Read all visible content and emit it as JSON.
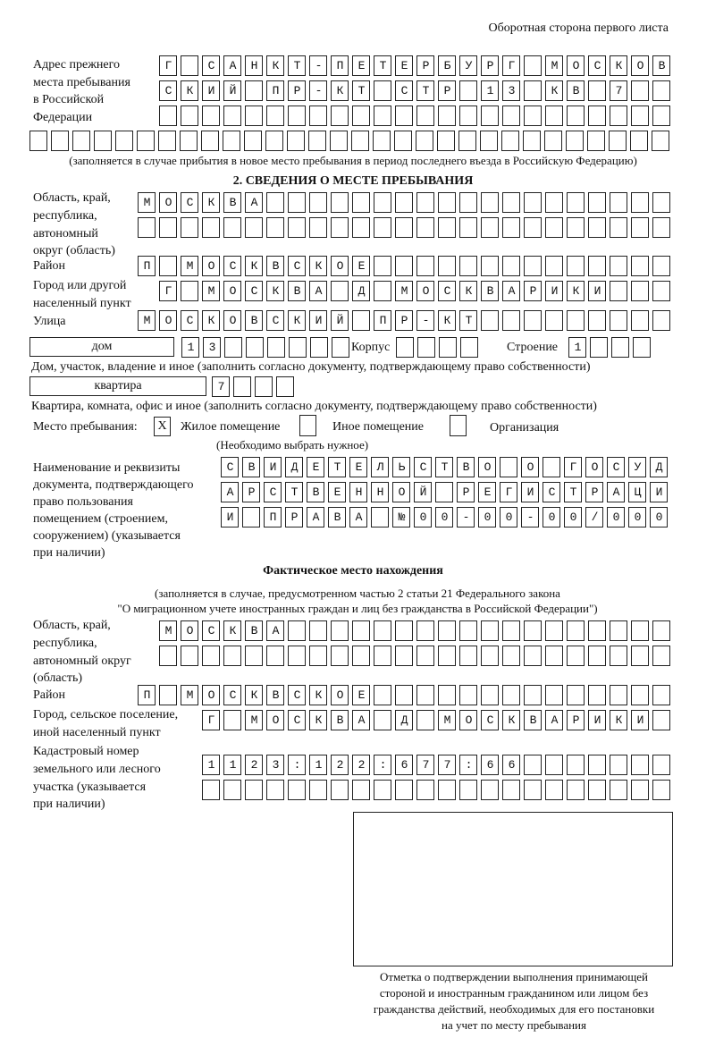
{
  "header": "Оборотная сторона первого листа",
  "prev_address": {
    "label": [
      "Адрес прежнего",
      "места пребывания",
      "в Российской",
      "Федерации"
    ],
    "rows": [
      "Г САНКТ-ПЕТЕРБУРГ МОСКОВ",
      "СКИЙ ПР-КТ СТР 13 КВ 7",
      "",
      ""
    ],
    "note": "(заполняется в случае прибытия в новое место пребывания в период последнего въезда в Российскую Федерацию)"
  },
  "section2": {
    "title": "2. СВЕДЕНИЯ О МЕСТЕ ПРЕБЫВАНИЯ",
    "region_label": [
      "Область, край,",
      "республика,",
      "автономный",
      "округ (область)"
    ],
    "region_rows": [
      "МОСКВА",
      ""
    ],
    "district_label": "Район",
    "district": "П МОСКВСКОЕ",
    "city_label": [
      "Город или другой",
      "населенный пункт"
    ],
    "city": "Г МОСКВА Д МОСКВАРИКИ",
    "street_label": "Улица",
    "street": "МОСКОВСКИЙ ПР-КТ",
    "house_type": "дом",
    "house": "13",
    "korpus_label": "Корпус",
    "korpus": "",
    "building_label": "Строение",
    "building": "1",
    "house_note": "Дом, участок, владение и иное (заполнить согласно документу, подтверждающему право собственности)",
    "apt_type": "квартира",
    "apt": "7",
    "apt_note": "Квартира, комната, офис и иное (заполнить согласно документу, подтверждающему право собственности)",
    "stay_label": "Место пребывания:",
    "options": [
      {
        "label": "Жилое помещение",
        "mark": "Х"
      },
      {
        "label": "Иное помещение",
        "mark": ""
      },
      {
        "label": "Организация",
        "mark": ""
      }
    ],
    "choose_note": "(Необходимо выбрать нужное)",
    "doc_label": [
      "Наименование и реквизиты",
      "документа, подтверждающего",
      "право пользования",
      "помещением (строением,",
      "сооружением) (указывается",
      "при наличии)"
    ],
    "doc_rows": [
      "СВИДЕТЕЛЬСТВО О ГОСУД",
      "АРСТВЕННОЙ РЕГИСТРАЦИ",
      "И ПРАВА №00-00-00/000"
    ]
  },
  "actual": {
    "title": "Фактическое место нахождения",
    "note": [
      "(заполняется в случае, предусмотренном частью 2 статьи 21 Федерального закона",
      "\"О миграционном учете иностранных граждан и лиц без гражданства в Российской Федерации\")"
    ],
    "region_label": [
      "Область, край,",
      "республика,",
      "автономный округ",
      "(область)"
    ],
    "region_rows": [
      "МОСКВА",
      ""
    ],
    "district_label": "Район",
    "district": "П МОСКВСКОЕ",
    "city_label": [
      "Город, сельское поселение,",
      "иной населенный пункт"
    ],
    "city": "Г МОСКВА Д МОСКВАРИКИ",
    "cadastre_label": [
      "Кадастровый номер",
      "земельного или лесного",
      "участка (указывается",
      "при наличии)"
    ],
    "cadastre_rows": [
      "1123:122:677:66",
      ""
    ]
  },
  "stamp_caption": [
    "Отметка о подтверждении выполнения принимающей",
    "стороной и иностранным гражданином или лицом без",
    "гражданства действий, необходимых для его постановки",
    "на учет по месту пребывания"
  ]
}
